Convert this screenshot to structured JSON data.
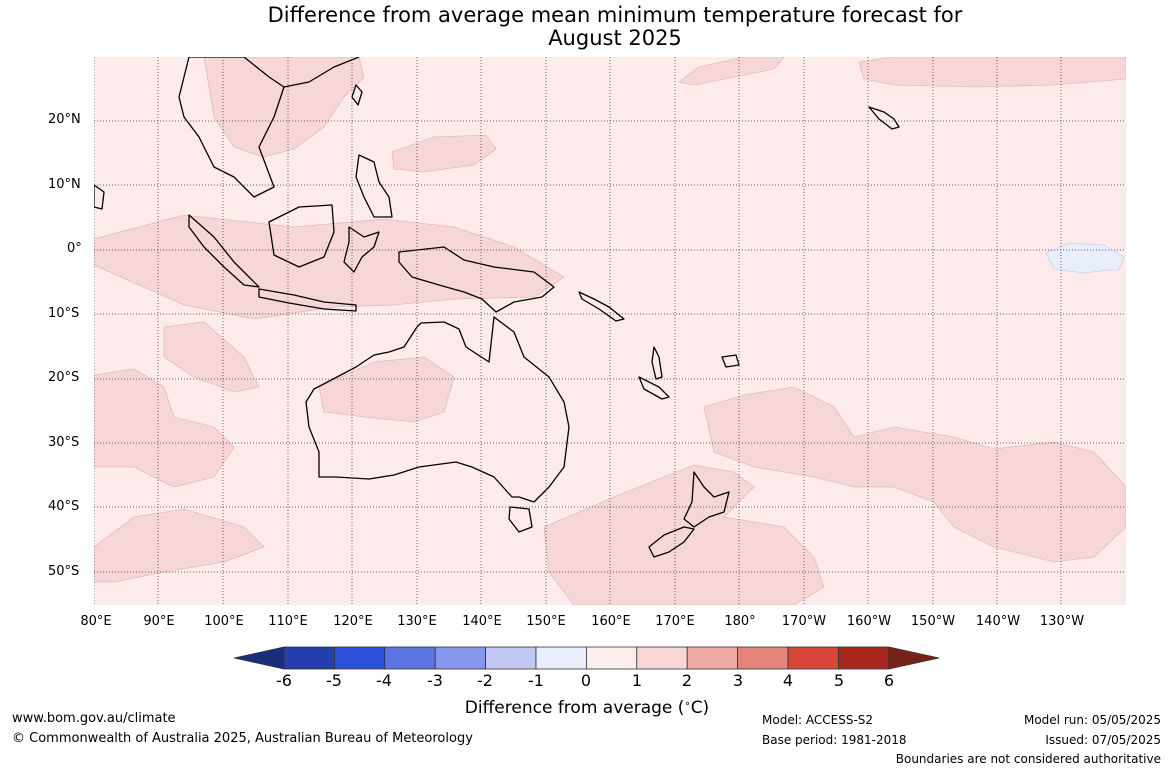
{
  "title_line1": "Difference from average mean minimum temperature forecast for",
  "title_line2": "August 2025",
  "lat_labels": [
    "20°N",
    "10°N",
    "0°",
    "10°S",
    "20°S",
    "30°S",
    "40°S",
    "50°S"
  ],
  "lon_labels": [
    "80°E",
    "90°E",
    "100°E",
    "110°E",
    "120°E",
    "130°E",
    "140°E",
    "150°E",
    "160°E",
    "170°E",
    "180°",
    "170°W",
    "160°W",
    "150°W",
    "140°W",
    "130°W"
  ],
  "colorbar": {
    "ticks": [
      "-6",
      "-5",
      "-4",
      "-3",
      "-2",
      "-1",
      "0",
      "1",
      "2",
      "3",
      "4",
      "5",
      "6"
    ],
    "colors": [
      "#1a2f7c",
      "#2540ae",
      "#2e4fdb",
      "#5c75e3",
      "#8597ea",
      "#c0c8f3",
      "#eaedfb",
      "#fceeec",
      "#f8d6d5",
      "#eea9a2",
      "#e5847b",
      "#d9473c",
      "#a9271f",
      "#782219"
    ],
    "label_text": "Difference from average (",
    "label_unit": "C)"
  },
  "map_colors": {
    "background": "#fcebea",
    "warm_anomaly": "#f6d6d6",
    "cool_anomaly": "#e8eefb"
  },
  "footer": {
    "website": "www.bom.gov.au/climate",
    "copyright": "© Commonwealth of Australia 2025, Australian Bureau of Meteorology",
    "model": "Model: ACCESS-S2",
    "base_period": "Base period: 1981-2018",
    "model_run": "Model run: 05/05/2025",
    "issued": "Issued: 07/05/2025",
    "disclaimer": "Boundaries are not considered authoritative"
  }
}
